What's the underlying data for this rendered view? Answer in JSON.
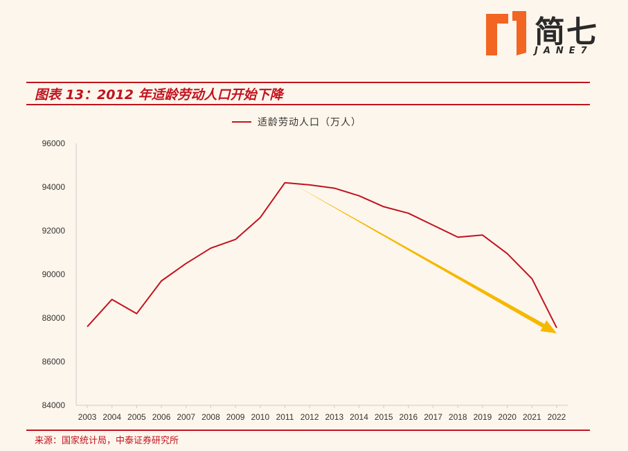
{
  "logo": {
    "chinese": "简七",
    "english": "JANE7",
    "colors": {
      "orange": "#f26522",
      "dark": "#2a2a2a"
    }
  },
  "header": {
    "title": "图表 13：2012 年适龄劳动人口开始下降"
  },
  "footer": {
    "source": "来源：国家统计局，中泰证券研究所"
  },
  "colors": {
    "accent": "#c1121f",
    "line": "#c1121f",
    "arrow": "#f5b800",
    "background": "#fdf6ec",
    "axis": "#cccccc"
  },
  "chart_data": {
    "type": "line",
    "title": "",
    "xlabel": "",
    "ylabel": "",
    "categories": [
      "2003",
      "2004",
      "2005",
      "2006",
      "2007",
      "2008",
      "2009",
      "2010",
      "2011",
      "2012",
      "2013",
      "2014",
      "2015",
      "2016",
      "2017",
      "2018",
      "2019",
      "2020",
      "2021",
      "2022"
    ],
    "series": [
      {
        "name": "适龄劳动人口（万人）",
        "values": [
          87600,
          88850,
          88200,
          89700,
          90500,
          91200,
          91600,
          92600,
          94200,
          94100,
          93950,
          93600,
          93100,
          92800,
          92250,
          91700,
          91800,
          90950,
          89800,
          87550
        ]
      }
    ],
    "ylim": [
      84000,
      96000
    ],
    "yticks": [
      "84000",
      "86000",
      "88000",
      "90000",
      "92000",
      "94000",
      "96000"
    ],
    "grid": false,
    "legend": "top-center",
    "annotation": {
      "type": "trend-arrow",
      "from": {
        "x": "2011",
        "y": 94100
      },
      "to": {
        "x": "2022",
        "y": 87300
      }
    }
  }
}
